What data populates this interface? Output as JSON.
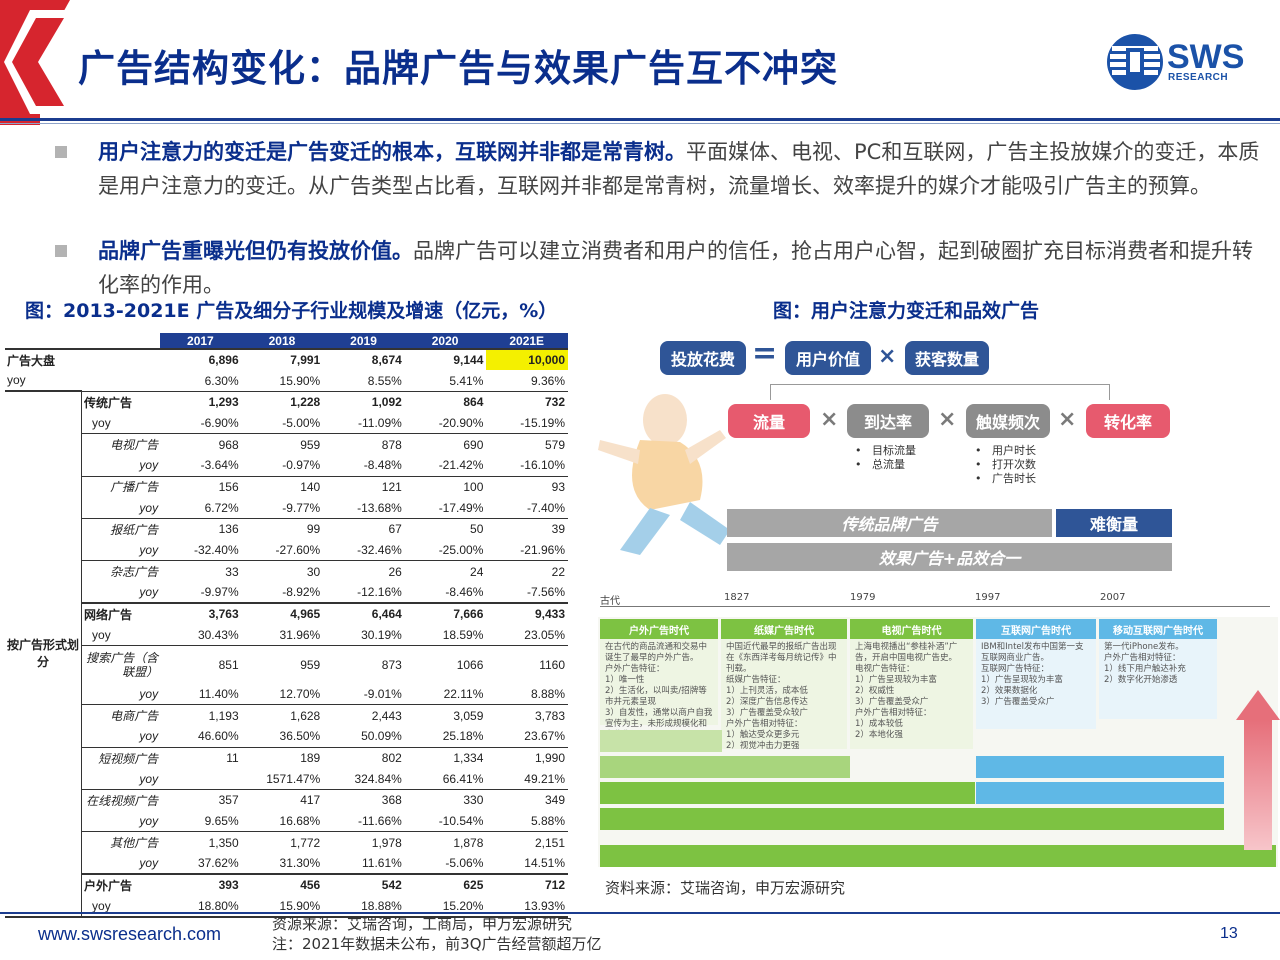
{
  "header": {
    "title": "广告结构变化：品牌广告与效果广告互不冲突",
    "logo_text": "SWS",
    "logo_sub": "RESEARCH"
  },
  "bullets": [
    {
      "bold": "用户注意力的变迁是广告变迁的根本，互联网并非都是常青树。",
      "text": "平面媒体、电视、PC和互联网，广告主投放媒介的变迁，本质是用户注意力的变迁。从广告类型占比看，互联网并非都是常青树，流量增长、效率提升的媒介才能吸引广告主的预算。"
    },
    {
      "bold": "品牌广告重曝光但仍有投放价值。",
      "text": "品牌广告可以建立消费者和用户的信任，抢占用户心智，起到破圈扩充目标消费者和提升转化率的作用。"
    }
  ],
  "left_figure": {
    "title": "图：2013-2021E 广告及细分子行业规模及增速（亿元，%）",
    "years": [
      "2017",
      "2018",
      "2019",
      "2020",
      "2021E"
    ],
    "group_label": "按广告形式划分",
    "rows": [
      {
        "c1": "广告大盘",
        "c2": "",
        "vals": [
          "6,896",
          "7,991",
          "8,674",
          "9,144",
          "10,000"
        ],
        "bold": true,
        "top": true
      },
      {
        "c1": "yoy",
        "c2": "",
        "vals": [
          "6.30%",
          "15.90%",
          "8.55%",
          "5.41%",
          "9.36%"
        ]
      },
      {
        "c1": "",
        "c2": "传统广告",
        "vals": [
          "1,293",
          "1,228",
          "1,092",
          "864",
          "732"
        ],
        "bold": true,
        "top": true
      },
      {
        "c1": "",
        "c2": "yoy",
        "vals": [
          "-6.90%",
          "-5.00%",
          "-11.09%",
          "-20.90%",
          "-15.19%"
        ]
      },
      {
        "c1": "",
        "c2": "电视广告",
        "vals": [
          "968",
          "959",
          "878",
          "690",
          "579"
        ],
        "it": true,
        "top": true
      },
      {
        "c1": "",
        "c2": "yoy",
        "vals": [
          "-3.64%",
          "-0.97%",
          "-8.48%",
          "-21.42%",
          "-16.10%"
        ],
        "it": true
      },
      {
        "c1": "",
        "c2": "广播广告",
        "vals": [
          "156",
          "140",
          "121",
          "100",
          "93"
        ],
        "it": true,
        "top": true
      },
      {
        "c1": "",
        "c2": "yoy",
        "vals": [
          "6.72%",
          "-9.77%",
          "-13.68%",
          "-17.49%",
          "-7.40%"
        ],
        "it": true
      },
      {
        "c1": "",
        "c2": "报纸广告",
        "vals": [
          "136",
          "99",
          "67",
          "50",
          "39"
        ],
        "it": true,
        "top": true
      },
      {
        "c1": "",
        "c2": "yoy",
        "vals": [
          "-32.40%",
          "-27.60%",
          "-32.46%",
          "-25.00%",
          "-21.96%"
        ],
        "it": true
      },
      {
        "c1": "",
        "c2": "杂志广告",
        "vals": [
          "33",
          "30",
          "26",
          "24",
          "22"
        ],
        "it": true,
        "top": true
      },
      {
        "c1": "",
        "c2": "yoy",
        "vals": [
          "-9.97%",
          "-8.92%",
          "-12.16%",
          "-8.46%",
          "-7.56%"
        ],
        "it": true
      },
      {
        "c1": "",
        "c2": "网络广告",
        "vals": [
          "3,763",
          "4,965",
          "6,464",
          "7,666",
          "9,433"
        ],
        "bold": true,
        "top2": true
      },
      {
        "c1": "",
        "c2": "yoy",
        "vals": [
          "30.43%",
          "31.96%",
          "30.19%",
          "18.59%",
          "23.05%"
        ]
      },
      {
        "c1": "",
        "c2": "搜索广告（含联盟）",
        "vals": [
          "851",
          "959",
          "873",
          "1066",
          "1160"
        ],
        "it": true,
        "top": true,
        "wrap": true
      },
      {
        "c1": "",
        "c2": "yoy",
        "vals": [
          "11.40%",
          "12.70%",
          "-9.01%",
          "22.11%",
          "8.88%"
        ],
        "it": true
      },
      {
        "c1": "",
        "c2": "电商广告",
        "vals": [
          "1,193",
          "1,628",
          "2,443",
          "3,059",
          "3,783"
        ],
        "it": true,
        "top": true
      },
      {
        "c1": "",
        "c2": "yoy",
        "vals": [
          "46.60%",
          "36.50%",
          "50.09%",
          "25.18%",
          "23.67%"
        ],
        "it": true
      },
      {
        "c1": "",
        "c2": "短视频广告",
        "vals": [
          "11",
          "189",
          "802",
          "1,334",
          "1,990"
        ],
        "it": true,
        "top": true
      },
      {
        "c1": "",
        "c2": "yoy",
        "vals": [
          "",
          "1571.47%",
          "324.84%",
          "66.41%",
          "49.21%"
        ],
        "it": true
      },
      {
        "c1": "",
        "c2": "在线视频广告",
        "vals": [
          "357",
          "417",
          "368",
          "330",
          "349"
        ],
        "it": true,
        "top": true
      },
      {
        "c1": "",
        "c2": "yoy",
        "vals": [
          "9.65%",
          "16.68%",
          "-11.66%",
          "-10.54%",
          "5.88%"
        ],
        "it": true
      },
      {
        "c1": "",
        "c2": "其他广告",
        "vals": [
          "1,350",
          "1,772",
          "1,978",
          "1,878",
          "2,151"
        ],
        "it": true,
        "top": true
      },
      {
        "c1": "",
        "c2": "yoy",
        "vals": [
          "37.62%",
          "31.30%",
          "11.61%",
          "-5.06%",
          "14.51%"
        ],
        "it": true
      },
      {
        "c1": "",
        "c2": "户外广告",
        "vals": [
          "393",
          "456",
          "542",
          "625",
          "712"
        ],
        "bold": true,
        "top2": true
      },
      {
        "c1": "",
        "c2": "yoy",
        "vals": [
          "18.80%",
          "15.90%",
          "18.88%",
          "15.20%",
          "13.93%"
        ]
      }
    ]
  },
  "right_figure": {
    "title": "图：用户注意力变迁和品效广告",
    "formula": {
      "left": "投放花费",
      "eq": "=",
      "a": "用户价值",
      "mul": "×",
      "b": "获客数量"
    },
    "factors": [
      "流量",
      "到达率",
      "触媒频次",
      "转化率"
    ],
    "factor_notes_1": [
      "目标流量",
      "总流量"
    ],
    "factor_notes_2": [
      "用户时长",
      "打开次数",
      "广告时长"
    ],
    "bar1": "传统品牌广告",
    "bar1b": "难衡量",
    "bar2": "效果广告+品效合一",
    "timeline_years": [
      "古代",
      "1827",
      "1979",
      "1997",
      "2007"
    ],
    "eras": [
      {
        "name": "户外广告时代",
        "body": "在古代的商品流通和交易中诞生了最早的户外广告。\n户外广告特征：\n1）唯一性\n2）生活化，以叫卖/招牌等市井元素呈现\n3）自发性，通常以商户自我宣传为主，未形成规模化和产业化"
      },
      {
        "name": "纸媒广告时代",
        "body": "中国近代最早的报纸广告出现在《东西洋考每月统记传》中刊载。\n纸媒广告特征：\n1）上刊灵活，成本低\n2）深度广告信息传达\n3）广告覆盖受众较广\n户外广告相对特征：\n1）触达受众更多元\n2）视觉冲击力更强"
      },
      {
        "name": "电视广告时代",
        "body": "上海电视播出“参桂补酒”广告，开启中国电视广告史。\n电视广告特征：\n1）广告呈现较为丰富\n2）权威性\n3）广告覆盖受众广\n户外广告相对特征：\n1）成本较低\n2）本地化强"
      },
      {
        "name": "互联网广告时代",
        "body": "IBM和Intel发布中国第一支互联网商业广告。\n互联网广告特征：\n1）广告呈现较为丰富\n2）效果数据化\n3）广告覆盖受众广"
      },
      {
        "name": "移动互联网广告时代",
        "body": "第一代iPhone发布。\n户外广告相对特征：\n1）线下用户触达补充\n2）数字化开始渗透"
      }
    ],
    "source": "资料来源：艾瑞咨询，申万宏源研究"
  },
  "footer": {
    "url": "www.swsresearch.com",
    "source_line1": "资源来源：艾瑞咨询，工商局，申万宏源研究",
    "source_line2": "注：2021年数据未公布，前3Q广告经营额超万亿",
    "page": "13"
  },
  "colors": {
    "brand_blue": "#0a2e8c",
    "brand_red": "#d6252e",
    "pill_blue": "#2f5597",
    "pill_pink": "#e75a6e",
    "highlight": "#f4f000",
    "green": "#7dc242",
    "light_blue": "#5fb8e6"
  }
}
